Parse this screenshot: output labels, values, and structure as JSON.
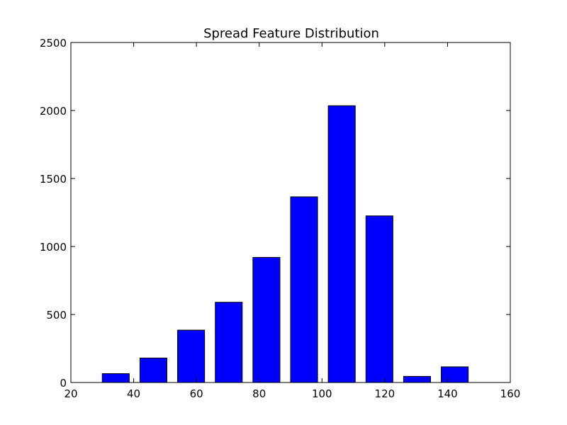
{
  "chart_data": {
    "type": "bar",
    "title": "Spread Feature Distribution",
    "xlabel": "",
    "ylabel": "",
    "xlim": [
      20,
      160
    ],
    "ylim": [
      0,
      2500
    ],
    "xticks": [
      "20",
      "40",
      "60",
      "80",
      "100",
      "120",
      "140",
      "160"
    ],
    "yticks": [
      "0",
      "500",
      "1000",
      "1500",
      "2000",
      "2500"
    ],
    "bar_color": "#0000ff",
    "grid": false,
    "bars": [
      {
        "x_start": 30,
        "x_end": 38.6,
        "value": 65
      },
      {
        "x_start": 42,
        "x_end": 50.6,
        "value": 180
      },
      {
        "x_start": 54,
        "x_end": 62.6,
        "value": 385
      },
      {
        "x_start": 66,
        "x_end": 74.6,
        "value": 590
      },
      {
        "x_start": 78,
        "x_end": 86.6,
        "value": 920
      },
      {
        "x_start": 90,
        "x_end": 98.6,
        "value": 1365
      },
      {
        "x_start": 102,
        "x_end": 110.6,
        "value": 2035
      },
      {
        "x_start": 114,
        "x_end": 122.6,
        "value": 1225
      },
      {
        "x_start": 126,
        "x_end": 134.6,
        "value": 45
      },
      {
        "x_start": 138,
        "x_end": 146.6,
        "value": 115
      }
    ]
  }
}
